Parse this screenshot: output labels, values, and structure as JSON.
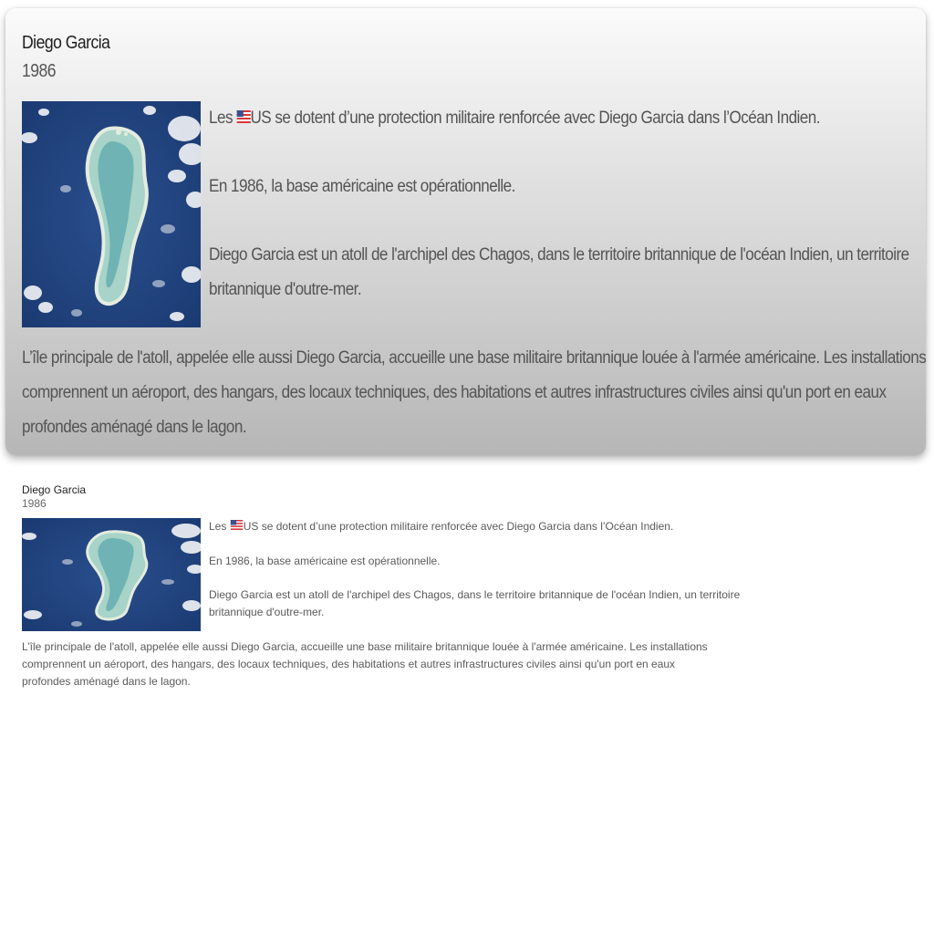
{
  "card": {
    "title": "Diego Garcia",
    "year": "1986",
    "image_alt": "Satellite view of Diego Garcia atoll",
    "paragraph1": {
      "before_flag": "Les ",
      "flag_icon": "us-flag-icon",
      "after_flag": "US se dotent d’une protection militaire renforcée avec Diego Garcia dans l’Océan Indien."
    },
    "paragraph2": "En 1986, la base américaine est opérationnelle.",
    "paragraph3": {
      "line1": "Diego Garcia est un atoll de l'archipel des Chagos, dans le territoire britannique de l'océan Indien, un territoire",
      "line2": "britannique d'outre-mer."
    },
    "paragraph4": {
      "line1": "L’île principale de l'atoll, appelée elle aussi Diego Garcia, accueille une base militaire britannique louée à l'armée américaine. Les installations",
      "line2": "comprennent un aéroport, des hangars, des locaux techniques, des habitations et autres infrastructures civiles ainsi qu'un port en eaux",
      "line3": "profondes aménagé dans le lagon."
    }
  },
  "plain": {
    "title": "Diego Garcia",
    "year": "1986",
    "image_alt": "Satellite view of Diego Garcia atoll",
    "paragraph1": {
      "before_flag": "Les ",
      "flag_icon": "us-flag-icon",
      "after_flag": "US se dotent d’une protection militaire renforcée avec Diego Garcia dans l’Océan Indien."
    },
    "paragraph2": "En 1986, la base américaine est opérationnelle.",
    "paragraph3": {
      "line1": "Diego Garcia est un atoll de l'archipel des Chagos, dans le territoire britannique de l'océan Indien, un territoire",
      "line2": "britannique d'outre-mer."
    },
    "paragraph4": {
      "line1": "L’île principale de l'atoll, appelée elle aussi Diego Garcia, accueille une base militaire britannique louée à l'armée américaine. Les installations",
      "line2": "comprennent un aéroport, des hangars, des locaux techniques, des habitations et autres infrastructures civiles ainsi qu'un port en eaux",
      "line3": "profondes aménagé dans le lagon."
    }
  },
  "colors": {
    "ocean": "#1f3f78",
    "reef": "#9fcfc4",
    "land": "#d9e2cf"
  }
}
